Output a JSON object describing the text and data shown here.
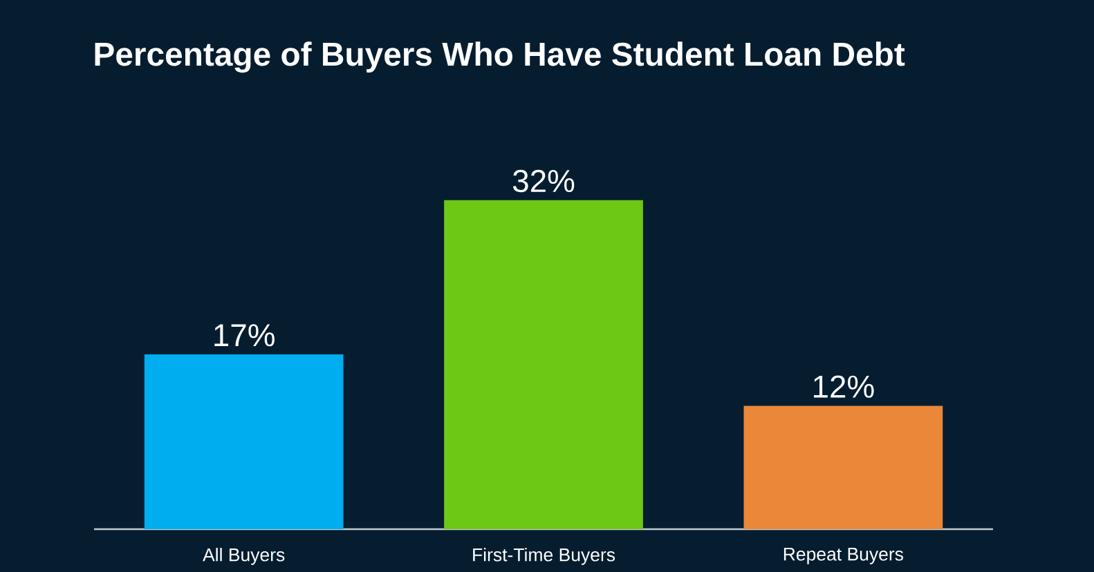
{
  "chart_data": {
    "type": "bar",
    "title": "Percentage of Buyers Who Have Student Loan Debt",
    "categories": [
      "All Buyers",
      "First-Time Buyers",
      "Repeat Buyers"
    ],
    "values": [
      17,
      32,
      12
    ],
    "value_labels": [
      "17%",
      "32%",
      "12%"
    ],
    "colors": [
      "#00aeef",
      "#6cc814",
      "#ea8738"
    ]
  }
}
